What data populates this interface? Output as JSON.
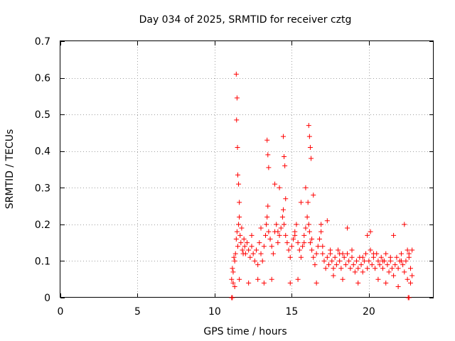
{
  "chart_data": {
    "type": "scatter",
    "title": "Day 034 of 2025, SRMTID for receiver cztg",
    "xlabel": "GPS time / hours",
    "ylabel": "SRMTID / TECUs",
    "xlim": [
      0,
      24.2
    ],
    "ylim": [
      0,
      0.7
    ],
    "xticks": [
      0,
      5,
      10,
      15,
      20
    ],
    "xtick_labels": [
      "0",
      "5",
      "10",
      "15",
      "20"
    ],
    "yticks": [
      0,
      0.1,
      0.2,
      0.3,
      0.4,
      0.5,
      0.6,
      0.7
    ],
    "ytick_labels": [
      "0",
      "0.1",
      "0.2",
      "0.3",
      "0.4",
      "0.5",
      "0.6",
      "0.7"
    ],
    "grid": true,
    "marker_color": "#ff0000",
    "series": [
      {
        "name": "SRMTID",
        "marker": "plus",
        "x": [
          11.1,
          11.15,
          11.2,
          11.25,
          11.3,
          11.35,
          11.4,
          11.45,
          11.5,
          11.55,
          11.6,
          11.65,
          11.7,
          11.75,
          11.8,
          11.85,
          11.9,
          11.95,
          12.0,
          12.1,
          12.2,
          12.3,
          12.4,
          12.5,
          12.6,
          12.7,
          12.8,
          12.9,
          13.0,
          13.1,
          13.2,
          13.3,
          13.35,
          13.4,
          13.45,
          13.5,
          13.6,
          13.7,
          13.8,
          13.9,
          14.0,
          14.1,
          14.2,
          14.3,
          14.4,
          14.45,
          14.5,
          14.6,
          14.7,
          14.8,
          14.9,
          15.0,
          15.1,
          15.2,
          15.3,
          15.4,
          15.5,
          15.6,
          15.7,
          15.8,
          15.9,
          16.0,
          16.05,
          16.1,
          16.15,
          16.2,
          16.3,
          16.4,
          16.5,
          16.6,
          16.7,
          16.8,
          16.9,
          17.0,
          17.1,
          17.2,
          17.3,
          17.4,
          17.5,
          17.6,
          17.7,
          17.8,
          17.9,
          18.0,
          18.1,
          18.2,
          18.3,
          18.4,
          18.5,
          18.6,
          18.7,
          18.8,
          18.9,
          19.0,
          19.1,
          19.2,
          19.3,
          19.4,
          19.5,
          19.6,
          19.7,
          19.8,
          19.9,
          20.0,
          20.1,
          20.2,
          20.3,
          20.4,
          20.5,
          20.6,
          20.7,
          20.8,
          20.9,
          21.0,
          21.1,
          21.2,
          21.3,
          21.4,
          21.5,
          21.6,
          21.7,
          21.8,
          21.9,
          22.0,
          22.1,
          22.2,
          22.3,
          22.4,
          22.5,
          22.6,
          22.7,
          22.8,
          11.4,
          11.45,
          11.42,
          11.48,
          11.5,
          11.55,
          11.6,
          13.4,
          13.45,
          13.5,
          14.45,
          14.5,
          14.55,
          16.1,
          16.15,
          16.2,
          16.25,
          13.9,
          14.2,
          14.6,
          15.6,
          15.9,
          16.4,
          16.9,
          17.3,
          18.6,
          19.9,
          20.1,
          21.6,
          22.3,
          11.2,
          11.3,
          11.6,
          12.2,
          12.8,
          13.2,
          13.7,
          14.9,
          15.4,
          16.6,
          17.7,
          18.3,
          19.3,
          20.6,
          21.1,
          21.9,
          22.5,
          22.7,
          12.4,
          13.0,
          13.6,
          14.1,
          15.2,
          15.8,
          16.3,
          17.0,
          17.5,
          18.1,
          18.9,
          19.6,
          20.3,
          20.9,
          21.4,
          22.1,
          22.6,
          22.8,
          11.1,
          11.15,
          22.55,
          22.6
        ],
        "y": [
          0.05,
          0.08,
          0.07,
          0.11,
          0.1,
          0.12,
          0.16,
          0.18,
          0.14,
          0.2,
          0.22,
          0.17,
          0.15,
          0.19,
          0.13,
          0.12,
          0.16,
          0.14,
          0.12,
          0.15,
          0.13,
          0.11,
          0.14,
          0.12,
          0.1,
          0.13,
          0.09,
          0.15,
          0.12,
          0.1,
          0.14,
          0.17,
          0.2,
          0.22,
          0.25,
          0.18,
          0.16,
          0.14,
          0.12,
          0.18,
          0.2,
          0.15,
          0.17,
          0.19,
          0.22,
          0.24,
          0.2,
          0.17,
          0.15,
          0.13,
          0.11,
          0.14,
          0.16,
          0.18,
          0.2,
          0.15,
          0.13,
          0.11,
          0.14,
          0.17,
          0.19,
          0.22,
          0.26,
          0.2,
          0.18,
          0.15,
          0.13,
          0.11,
          0.09,
          0.12,
          0.14,
          0.16,
          0.18,
          0.12,
          0.1,
          0.08,
          0.11,
          0.09,
          0.12,
          0.1,
          0.08,
          0.11,
          0.09,
          0.13,
          0.1,
          0.08,
          0.12,
          0.11,
          0.09,
          0.12,
          0.1,
          0.08,
          0.11,
          0.09,
          0.07,
          0.1,
          0.08,
          0.11,
          0.09,
          0.07,
          0.1,
          0.12,
          0.08,
          0.1,
          0.13,
          0.09,
          0.11,
          0.08,
          0.12,
          0.1,
          0.09,
          0.11,
          0.08,
          0.1,
          0.12,
          0.09,
          0.07,
          0.1,
          0.08,
          0.06,
          0.09,
          0.11,
          0.08,
          0.1,
          0.12,
          0.09,
          0.07,
          0.1,
          0.13,
          0.11,
          0.08,
          0.06,
          0.61,
          0.545,
          0.485,
          0.41,
          0.335,
          0.31,
          0.26,
          0.43,
          0.39,
          0.355,
          0.44,
          0.385,
          0.36,
          0.47,
          0.44,
          0.41,
          0.38,
          0.31,
          0.3,
          0.27,
          0.26,
          0.3,
          0.28,
          0.2,
          0.21,
          0.19,
          0.17,
          0.18,
          0.17,
          0.2,
          0.04,
          0.03,
          0.05,
          0.04,
          0.05,
          0.04,
          0.05,
          0.04,
          0.05,
          0.04,
          0.06,
          0.05,
          0.04,
          0.05,
          0.04,
          0.03,
          0.05,
          0.04,
          0.17,
          0.19,
          0.16,
          0.18,
          0.17,
          0.15,
          0.16,
          0.14,
          0.13,
          0.12,
          0.13,
          0.11,
          0.12,
          0.1,
          0.11,
          0.1,
          0.12,
          0.13,
          0.0,
          0.0,
          0.0,
          0.0
        ]
      }
    ]
  }
}
